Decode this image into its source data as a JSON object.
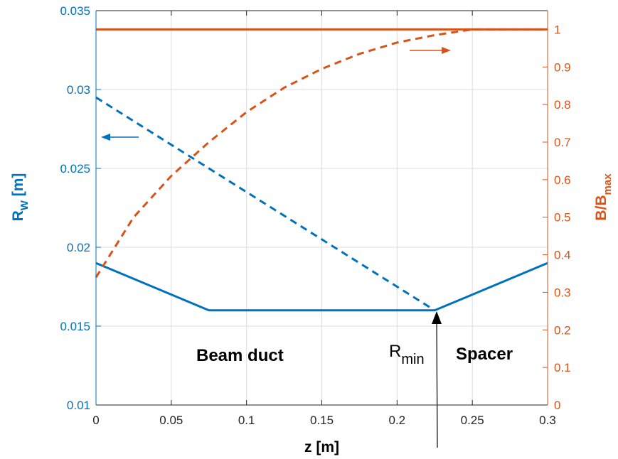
{
  "chart_data": {
    "type": "line",
    "xlabel": "z [m]",
    "xlim": [
      0,
      0.3
    ],
    "x_ticks": [
      "0",
      "0.05",
      "0.1",
      "0.15",
      "0.2",
      "0.25",
      "0.3"
    ],
    "left_axis": {
      "label_main": "R",
      "label_sub": "W",
      "label_tail": " [m]",
      "ylim": [
        0.01,
        0.035
      ],
      "ticks": [
        "0.01",
        "0.015",
        "0.02",
        "0.025",
        "0.03",
        "0.035"
      ],
      "color": "#0072BD"
    },
    "right_axis": {
      "label_main": "B/B",
      "label_sub": "max",
      "ylim": [
        0,
        1.05
      ],
      "ticks": [
        "0",
        "0.1",
        "0.2",
        "0.3",
        "0.4",
        "0.5",
        "0.6",
        "0.7",
        "0.8",
        "0.9",
        "1"
      ],
      "color": "#D95319"
    },
    "grid": true,
    "series": [
      {
        "axis": "left",
        "style": "solid",
        "color": "#0072BD",
        "x": [
          0,
          0.075,
          0.225,
          0.3
        ],
        "y": [
          0.019,
          0.016,
          0.016,
          0.019
        ]
      },
      {
        "axis": "left",
        "style": "dashed",
        "color": "#0072BD",
        "x": [
          0,
          0.225
        ],
        "y": [
          0.0295,
          0.016
        ]
      },
      {
        "axis": "right",
        "style": "solid",
        "color": "#D95319",
        "x": [
          0,
          0.3
        ],
        "y": [
          1.0,
          1.0
        ]
      },
      {
        "axis": "right",
        "style": "dashed",
        "color": "#D95319",
        "x": [
          0,
          0.025,
          0.05,
          0.075,
          0.1,
          0.125,
          0.15,
          0.175,
          0.2,
          0.225,
          0.25,
          0.3
        ],
        "y": [
          0.34,
          0.5,
          0.61,
          0.7,
          0.78,
          0.845,
          0.895,
          0.935,
          0.965,
          0.985,
          1.0,
          1.0
        ]
      }
    ],
    "annotations": {
      "beam_duct": "Beam duct",
      "spacer": "Spacer",
      "rmin_main": "R",
      "rmin_sub": "min"
    }
  }
}
